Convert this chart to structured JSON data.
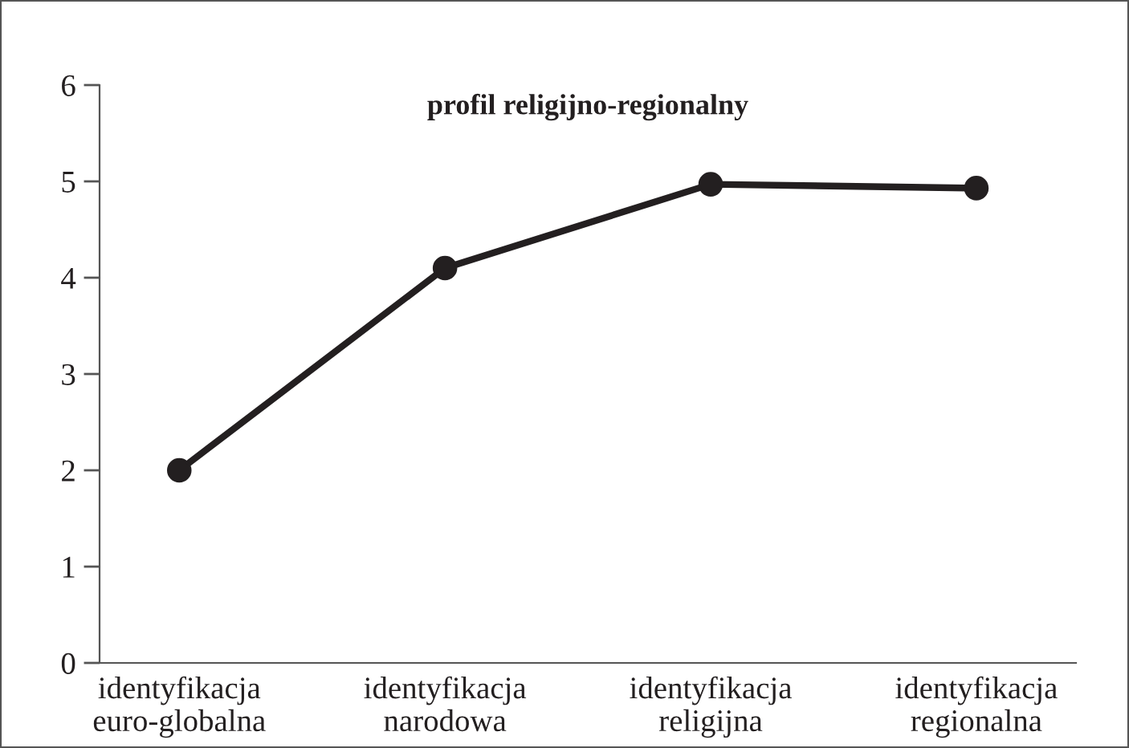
{
  "chart_data": {
    "type": "line",
    "title": "profil religijno-regionalny",
    "categories": [
      "identyfikacja\neuro-globalna",
      "identyfikacja\nnarodowa",
      "identyfikacja\nreligijna",
      "identyfikacja\nregionalna"
    ],
    "series": [
      {
        "color": "#231f20",
        "values": [
          2.0,
          4.1,
          4.97,
          4.93
        ]
      }
    ],
    "ylim": [
      0,
      6
    ],
    "yticks": [
      0,
      1,
      2,
      3,
      4,
      5,
      6
    ],
    "marker": "circle",
    "line_style": "solid"
  }
}
